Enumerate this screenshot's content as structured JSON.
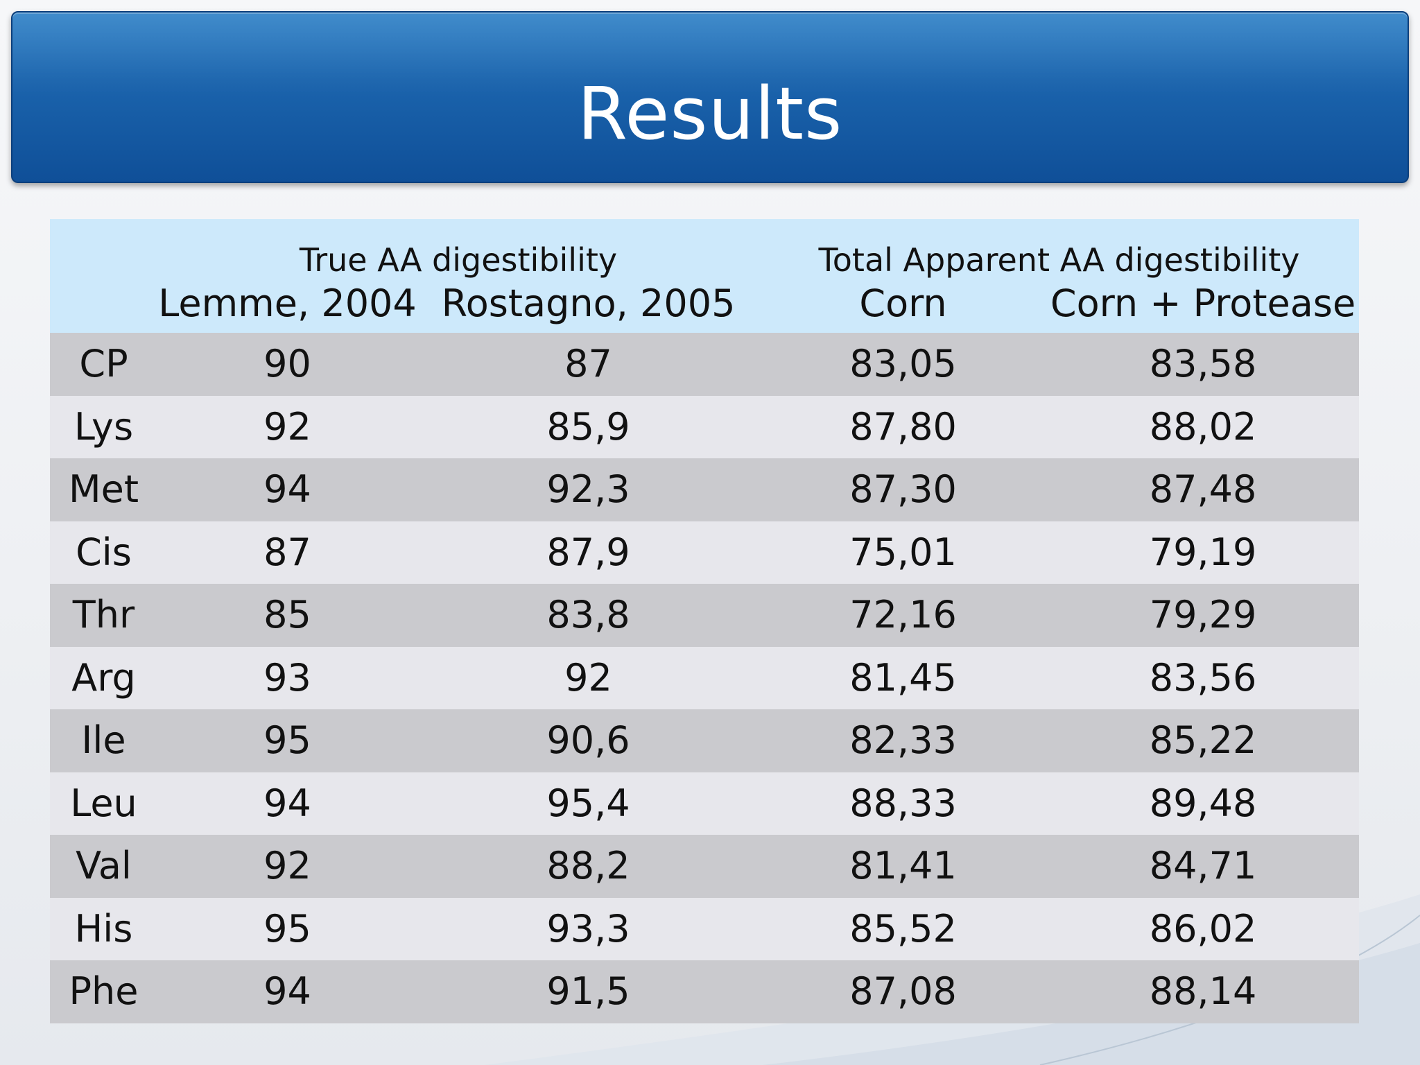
{
  "slide": {
    "title": "Results"
  },
  "table": {
    "group_headers": [
      "True AA digestibility",
      "Total Apparent AA digestibility"
    ],
    "sub_headers": [
      "",
      "Lemme, 2004",
      "Rostagno, 2005",
      "Corn",
      "Corn + Protease"
    ],
    "rows": [
      [
        "CP",
        "90",
        "87",
        "83,05",
        "83,58"
      ],
      [
        "Lys",
        "92",
        "85,9",
        "87,80",
        "88,02"
      ],
      [
        "Met",
        "94",
        "92,3",
        "87,30",
        "87,48"
      ],
      [
        "Cis",
        "87",
        "87,9",
        "75,01",
        "79,19"
      ],
      [
        "Thr",
        "85",
        "83,8",
        "72,16",
        "79,29"
      ],
      [
        "Arg",
        "93",
        "92",
        "81,45",
        "83,56"
      ],
      [
        "Ile",
        "95",
        "90,6",
        "82,33",
        "85,22"
      ],
      [
        "Leu",
        "94",
        "95,4",
        "88,33",
        "89,48"
      ],
      [
        "Val",
        "92",
        "88,2",
        "81,41",
        "84,71"
      ],
      [
        "His",
        "95",
        "93,3",
        "85,52",
        "86,02"
      ],
      [
        "Phe",
        "94",
        "91,5",
        "87,08",
        "88,14"
      ]
    ]
  },
  "colors": {
    "title_bar": "#1b64ad",
    "header_bg": "#cde9fb",
    "row_dark": "#cacace",
    "row_light": "#e7e7ec"
  }
}
